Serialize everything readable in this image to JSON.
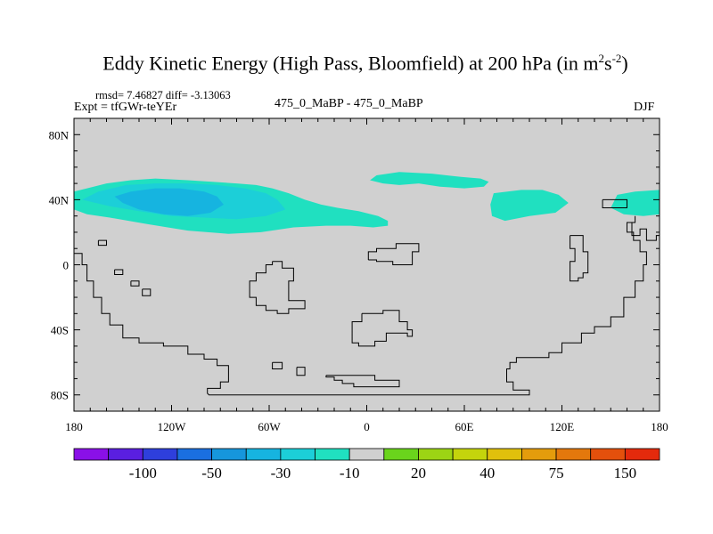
{
  "chart_data": {
    "type": "heatmap",
    "title_main": "Eddy Kinetic Energy (High Pass, Bloomfield) at 200 hPa (in m",
    "title_sup1": "2",
    "title_mid": "s",
    "title_sup2": "-2",
    "title_end": ")",
    "stats": "rmsd= 7.46827  diff= -3.13063",
    "expt": "Expt = tfGWr-teYEr",
    "center_label": "475_0_MaBP - 475_0_MaBP",
    "season": "DJF",
    "x_range": [
      -180,
      180
    ],
    "y_range": [
      -90,
      90
    ],
    "x_ticks": [
      {
        "value": -180,
        "label": "180"
      },
      {
        "value": -120,
        "label": "120W"
      },
      {
        "value": -60,
        "label": "60W"
      },
      {
        "value": 0,
        "label": "0"
      },
      {
        "value": 60,
        "label": "60E"
      },
      {
        "value": 120,
        "label": "120E"
      },
      {
        "value": 180,
        "label": "180"
      }
    ],
    "y_ticks": [
      {
        "value": 80,
        "label": "80N"
      },
      {
        "value": 40,
        "label": "40N"
      },
      {
        "value": 0,
        "label": "0"
      },
      {
        "value": -40,
        "label": "40S"
      },
      {
        "value": -80,
        "label": "80S"
      }
    ],
    "colorbar": {
      "colors": [
        "#8a10e8",
        "#5a1fe0",
        "#2e3fdc",
        "#1a6fe0",
        "#1696dc",
        "#16b4e0",
        "#1ccfd8",
        "#20e0c0",
        "#d0d0d0",
        "#6ad41c",
        "#9cd414",
        "#c4d40c",
        "#e0c00c",
        "#e49c0c",
        "#e4780c",
        "#e4500c",
        "#e42a0c"
      ],
      "labels": [
        {
          "index": 2,
          "text": "-100"
        },
        {
          "index": 4,
          "text": "-50"
        },
        {
          "index": 6,
          "text": "-30"
        },
        {
          "index": 8,
          "text": "-10"
        },
        {
          "index": 10,
          "text": "20"
        },
        {
          "index": 12,
          "text": "40"
        },
        {
          "index": 14,
          "text": "75"
        },
        {
          "index": 16,
          "text": "150"
        }
      ]
    },
    "regions": [
      {
        "level": -10,
        "color": "#20e0c0",
        "points": [
          [
            -180,
            34
          ],
          [
            -180,
            45
          ],
          [
            -172,
            47
          ],
          [
            -160,
            50
          ],
          [
            -145,
            52
          ],
          [
            -130,
            53
          ],
          [
            -110,
            52
          ],
          [
            -95,
            51
          ],
          [
            -80,
            50
          ],
          [
            -68,
            49
          ],
          [
            -58,
            47
          ],
          [
            -48,
            44
          ],
          [
            -38,
            40
          ],
          [
            -28,
            37
          ],
          [
            -18,
            35
          ],
          [
            -5,
            33
          ],
          [
            7,
            30
          ],
          [
            13,
            27
          ],
          [
            13,
            24
          ],
          [
            4,
            23
          ],
          [
            -10,
            24
          ],
          [
            -25,
            24
          ],
          [
            -45,
            23
          ],
          [
            -65,
            20
          ],
          [
            -85,
            19
          ],
          [
            -110,
            21
          ],
          [
            -135,
            25
          ],
          [
            -158,
            29
          ],
          [
            -172,
            31
          ]
        ]
      },
      {
        "level": -30,
        "color": "#1ccfd8",
        "points": [
          [
            -175,
            40
          ],
          [
            -165,
            45
          ],
          [
            -148,
            49
          ],
          [
            -130,
            50
          ],
          [
            -110,
            50
          ],
          [
            -92,
            49
          ],
          [
            -75,
            47
          ],
          [
            -62,
            44
          ],
          [
            -55,
            40
          ],
          [
            -50,
            34
          ],
          [
            -62,
            30
          ],
          [
            -80,
            28
          ],
          [
            -100,
            29
          ],
          [
            -120,
            30
          ],
          [
            -140,
            33
          ],
          [
            -158,
            36
          ]
        ]
      },
      {
        "level": -50,
        "color": "#16b4e0",
        "points": [
          [
            -155,
            42
          ],
          [
            -145,
            45
          ],
          [
            -130,
            47
          ],
          [
            -115,
            47
          ],
          [
            -100,
            45
          ],
          [
            -92,
            42
          ],
          [
            -88,
            37
          ],
          [
            -96,
            32
          ],
          [
            -110,
            30
          ],
          [
            -125,
            31
          ],
          [
            -140,
            34
          ],
          [
            -150,
            38
          ]
        ]
      },
      {
        "level": -10,
        "color": "#20e0c0",
        "points": [
          [
            2,
            52
          ],
          [
            6,
            55
          ],
          [
            20,
            57
          ],
          [
            40,
            56
          ],
          [
            58,
            54
          ],
          [
            70,
            53
          ],
          [
            75,
            51
          ],
          [
            72,
            48
          ],
          [
            60,
            47
          ],
          [
            45,
            48
          ],
          [
            32,
            50
          ],
          [
            20,
            49
          ],
          [
            10,
            50
          ]
        ]
      },
      {
        "level": -10,
        "color": "#20e0c0",
        "points": [
          [
            78,
            44
          ],
          [
            95,
            46
          ],
          [
            108,
            46
          ],
          [
            118,
            43
          ],
          [
            124,
            38
          ],
          [
            116,
            32
          ],
          [
            100,
            30
          ],
          [
            85,
            27
          ],
          [
            77,
            30
          ],
          [
            76,
            37
          ]
        ]
      },
      {
        "level": -10,
        "color": "#20e0c0",
        "points": [
          [
            154,
            43
          ],
          [
            165,
            45
          ],
          [
            180,
            46
          ],
          [
            180,
            31
          ],
          [
            170,
            30
          ],
          [
            158,
            31
          ],
          [
            150,
            35
          ]
        ]
      }
    ],
    "coastlines": [
      [
        [
          -180,
          7
        ],
        [
          -175,
          7
        ],
        [
          -175,
          0
        ],
        [
          -172,
          0
        ],
        [
          -172,
          -10
        ],
        [
          -168,
          -10
        ],
        [
          -168,
          -20
        ],
        [
          -163,
          -20
        ],
        [
          -163,
          -30
        ],
        [
          -158,
          -30
        ],
        [
          -158,
          -37
        ],
        [
          -150,
          -37
        ],
        [
          -150,
          -45
        ],
        [
          -140,
          -45
        ],
        [
          -140,
          -48
        ],
        [
          -125,
          -48
        ],
        [
          -125,
          -50
        ],
        [
          -110,
          -50
        ],
        [
          -110,
          -55
        ],
        [
          -100,
          -55
        ],
        [
          -100,
          -58
        ],
        [
          -92,
          -58
        ],
        [
          -92,
          -62
        ],
        [
          -85,
          -62
        ],
        [
          -85,
          -72
        ],
        [
          -90,
          -72
        ],
        [
          -90,
          -76
        ],
        [
          -98,
          -76
        ],
        [
          -98,
          -79
        ],
        [
          -97,
          -80
        ],
        [
          100,
          -80
        ],
        [
          100,
          -77
        ],
        [
          90,
          -77
        ],
        [
          90,
          -72
        ],
        [
          86,
          -72
        ],
        [
          86,
          -64
        ],
        [
          88,
          -64
        ],
        [
          88,
          -60
        ],
        [
          92,
          -60
        ],
        [
          92,
          -57
        ],
        [
          112,
          -57
        ],
        [
          112,
          -54
        ],
        [
          120,
          -54
        ],
        [
          120,
          -48
        ],
        [
          132,
          -48
        ],
        [
          132,
          -42
        ],
        [
          140,
          -42
        ],
        [
          140,
          -38
        ],
        [
          150,
          -38
        ],
        [
          150,
          -32
        ],
        [
          158,
          -32
        ],
        [
          158,
          -20
        ],
        [
          165,
          -20
        ],
        [
          165,
          -10
        ],
        [
          170,
          -10
        ],
        [
          170,
          0
        ],
        [
          172,
          0
        ],
        [
          172,
          8
        ],
        [
          168,
          8
        ],
        [
          168,
          15
        ],
        [
          164,
          15
        ],
        [
          164,
          20
        ],
        [
          160,
          20
        ],
        [
          160,
          26
        ],
        [
          165,
          26
        ],
        [
          165,
          30
        ]
      ],
      [
        [
          -165,
          15
        ],
        [
          -160,
          15
        ],
        [
          -160,
          12
        ],
        [
          -165,
          12
        ],
        [
          -165,
          15
        ]
      ],
      [
        [
          -155,
          -3
        ],
        [
          -150,
          -3
        ],
        [
          -150,
          -6
        ],
        [
          -155,
          -6
        ],
        [
          -155,
          -3
        ]
      ],
      [
        [
          -145,
          -10
        ],
        [
          -140,
          -10
        ],
        [
          -140,
          -13
        ],
        [
          -145,
          -13
        ],
        [
          -145,
          -10
        ]
      ],
      [
        [
          -138,
          -15
        ],
        [
          -133,
          -15
        ],
        [
          -133,
          -19
        ],
        [
          -138,
          -19
        ],
        [
          -138,
          -15
        ]
      ],
      [
        [
          -58,
          2
        ],
        [
          -52,
          2
        ],
        [
          -52,
          -2
        ],
        [
          -45,
          -2
        ],
        [
          -45,
          -10
        ],
        [
          -48,
          -10
        ],
        [
          -48,
          -22
        ],
        [
          -38,
          -22
        ],
        [
          -38,
          -27
        ],
        [
          -48,
          -27
        ],
        [
          -48,
          -30
        ],
        [
          -55,
          -30
        ],
        [
          -55,
          -28
        ],
        [
          -62,
          -28
        ],
        [
          -62,
          -25
        ],
        [
          -68,
          -25
        ],
        [
          -68,
          -20
        ],
        [
          -72,
          -20
        ],
        [
          -72,
          -10
        ],
        [
          -68,
          -10
        ],
        [
          -68,
          -5
        ],
        [
          -62,
          -5
        ],
        [
          -62,
          0
        ],
        [
          -58,
          0
        ],
        [
          -58,
          2
        ]
      ],
      [
        [
          -58,
          -60
        ],
        [
          -52,
          -60
        ],
        [
          -52,
          -64
        ],
        [
          -58,
          -64
        ],
        [
          -58,
          -60
        ]
      ],
      [
        [
          -43,
          -63
        ],
        [
          -38,
          -63
        ],
        [
          -38,
          -68
        ],
        [
          -43,
          -68
        ],
        [
          -43,
          -63
        ]
      ],
      [
        [
          1,
          3
        ],
        [
          1,
          8
        ],
        [
          6,
          8
        ],
        [
          6,
          10
        ],
        [
          18,
          10
        ],
        [
          18,
          13
        ],
        [
          32,
          13
        ],
        [
          32,
          8
        ],
        [
          28,
          8
        ],
        [
          28,
          0
        ],
        [
          16,
          0
        ],
        [
          16,
          2
        ],
        [
          6,
          2
        ],
        [
          6,
          3
        ],
        [
          1,
          3
        ]
      ],
      [
        [
          -3,
          -30
        ],
        [
          -3,
          -35
        ],
        [
          -9,
          -35
        ],
        [
          -9,
          -48
        ],
        [
          -5,
          -48
        ],
        [
          -5,
          -50
        ],
        [
          5,
          -50
        ],
        [
          5,
          -47
        ],
        [
          12,
          -47
        ],
        [
          12,
          -42
        ],
        [
          25,
          -42
        ],
        [
          25,
          -44
        ],
        [
          28,
          -44
        ],
        [
          28,
          -40
        ],
        [
          25,
          -40
        ],
        [
          25,
          -35
        ],
        [
          20,
          -35
        ],
        [
          20,
          -28
        ],
        [
          10,
          -28
        ],
        [
          10,
          -30
        ],
        [
          -3,
          -30
        ]
      ],
      [
        [
          -25,
          -68
        ],
        [
          5,
          -68
        ],
        [
          5,
          -71
        ],
        [
          20,
          -71
        ],
        [
          20,
          -75
        ],
        [
          -8,
          -75
        ],
        [
          -8,
          -73
        ],
        [
          -15,
          -73
        ],
        [
          -15,
          -71
        ],
        [
          -20,
          -71
        ],
        [
          -20,
          -69
        ],
        [
          -25,
          -69
        ],
        [
          -25,
          -68
        ]
      ],
      [
        [
          145,
          40
        ],
        [
          145,
          35
        ],
        [
          160,
          35
        ],
        [
          160,
          40
        ],
        [
          145,
          40
        ]
      ],
      [
        [
          125,
          18
        ],
        [
          125,
          10
        ],
        [
          128,
          10
        ],
        [
          128,
          2
        ],
        [
          125,
          2
        ],
        [
          125,
          -10
        ],
        [
          130,
          -10
        ],
        [
          130,
          -8
        ],
        [
          133,
          -8
        ],
        [
          133,
          -5
        ],
        [
          136,
          -5
        ],
        [
          136,
          8
        ],
        [
          133,
          8
        ],
        [
          133,
          18
        ],
        [
          125,
          18
        ]
      ],
      [
        [
          163,
          26
        ],
        [
          163,
          18
        ],
        [
          168,
          18
        ],
        [
          168,
          22
        ],
        [
          172,
          22
        ],
        [
          172,
          15
        ],
        [
          178,
          15
        ],
        [
          178,
          18
        ],
        [
          180,
          18
        ]
      ]
    ]
  }
}
